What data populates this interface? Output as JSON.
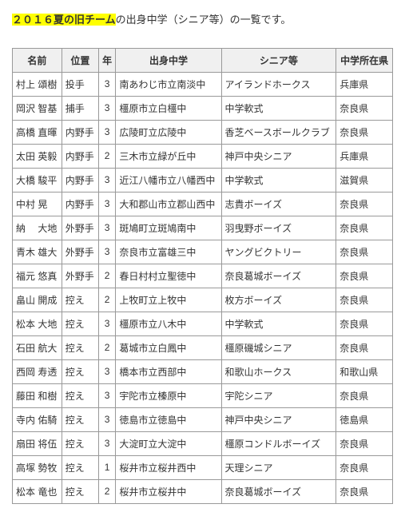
{
  "intro": {
    "highlight": "２０１６夏の旧チーム",
    "rest": "の出身中学（シニア等）の一覧です。"
  },
  "table": {
    "columns": [
      "名前",
      "位置",
      "年",
      "出身中学",
      "シニア等",
      "中学所在県"
    ],
    "rows": [
      [
        "村上 頌樹",
        "投手",
        "3",
        "南あわじ市立南淡中",
        "アイランドホークス",
        "兵庫県"
      ],
      [
        "岡沢 智基",
        "捕手",
        "3",
        "橿原市立白橿中",
        "中学軟式",
        "奈良県"
      ],
      [
        "高橋 直暉",
        "内野手",
        "3",
        "広陵町立広陵中",
        "香芝ベースボールクラブ",
        "奈良県"
      ],
      [
        "太田 英毅",
        "内野手",
        "2",
        "三木市立緑が丘中",
        "神戸中央シニア",
        "兵庫県"
      ],
      [
        "大橋 駿平",
        "内野手",
        "3",
        "近江八幡市立八幡西中",
        "中学軟式",
        "滋賀県"
      ],
      [
        "中村 晃",
        "内野手",
        "3",
        "大和郡山市立郡山西中",
        "志貴ボーイズ",
        "奈良県"
      ],
      [
        "納　 大地",
        "外野手",
        "3",
        "斑鳩町立斑鳩南中",
        "羽曳野ボーイズ",
        "奈良県"
      ],
      [
        "青木 雄大",
        "外野手",
        "3",
        "奈良市立富雄三中",
        "ヤングビクトリー",
        "奈良県"
      ],
      [
        "福元 悠真",
        "外野手",
        "2",
        "春日村村立聖徳中",
        "奈良葛城ボーイズ",
        "奈良県"
      ],
      [
        "畠山 開成",
        "控え",
        "2",
        "上牧町立上牧中",
        "枚方ボーイズ",
        "奈良県"
      ],
      [
        "松本 大地",
        "控え",
        "3",
        "橿原市立八木中",
        "中学軟式",
        "奈良県"
      ],
      [
        "石田 航大",
        "控え",
        "2",
        "葛城市立白鳳中",
        "橿原磯城シニア",
        "奈良県"
      ],
      [
        "西岡 寿透",
        "控え",
        "3",
        "橋本市立西部中",
        "和歌山ホークス",
        "和歌山県"
      ],
      [
        "藤田 和樹",
        "控え",
        "3",
        "宇陀市立榛原中",
        "宇陀シニア",
        "奈良県"
      ],
      [
        "寺内 佑騎",
        "控え",
        "3",
        "徳島市立徳島中",
        "神戸中央シニア",
        "徳島県"
      ],
      [
        "扇田 将伍",
        "控え",
        "3",
        "大淀町立大淀中",
        "橿原コンドルボーイズ",
        "奈良県"
      ],
      [
        "高塚 勢牧",
        "控え",
        "1",
        "桜井市立桜井西中",
        "天理シニア",
        "奈良県"
      ],
      [
        "松本 竜也",
        "控え",
        "2",
        "桜井市立桜井中",
        "奈良葛城ボーイズ",
        "奈良県"
      ]
    ]
  }
}
